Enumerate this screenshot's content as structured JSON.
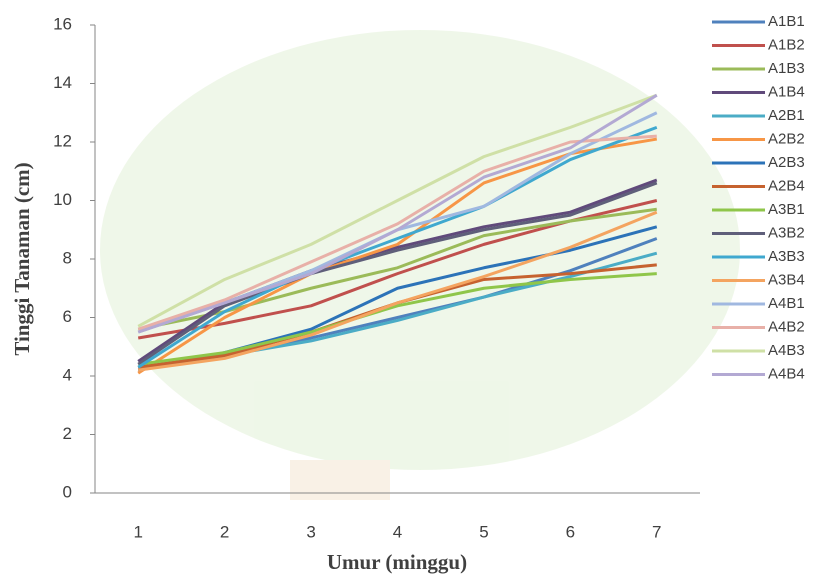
{
  "chart_data": {
    "type": "line",
    "x_label": "Umur (minggu)",
    "y_label": "Tinggi Tanaman (cm)",
    "categories": [
      "1",
      "2",
      "3",
      "4",
      "5",
      "6",
      "7"
    ],
    "ylim": [
      0,
      16
    ],
    "yticks": [
      0,
      2,
      4,
      6,
      8,
      10,
      12,
      14,
      16
    ],
    "series": [
      {
        "name": "A1B1",
        "color": "#4f81bd",
        "values": [
          4.3,
          4.7,
          5.3,
          6.0,
          6.7,
          7.6,
          8.7
        ]
      },
      {
        "name": "A1B2",
        "color": "#c0504d",
        "values": [
          5.3,
          5.8,
          6.4,
          7.5,
          8.5,
          9.3,
          10.0
        ]
      },
      {
        "name": "A1B3",
        "color": "#9bbb59",
        "values": [
          5.6,
          6.2,
          7.0,
          7.7,
          8.8,
          9.3,
          9.7
        ]
      },
      {
        "name": "A1B4",
        "color": "#604a7b",
        "values": [
          4.5,
          6.5,
          7.6,
          8.4,
          9.1,
          9.6,
          10.7
        ]
      },
      {
        "name": "A2B1",
        "color": "#4bacc6",
        "values": [
          4.2,
          4.7,
          5.2,
          5.9,
          6.7,
          7.4,
          8.2
        ]
      },
      {
        "name": "A2B2",
        "color": "#f79646",
        "values": [
          4.1,
          6.0,
          7.5,
          8.5,
          10.6,
          11.6,
          12.1
        ]
      },
      {
        "name": "A2B3",
        "color": "#2c73b8",
        "values": [
          4.2,
          4.8,
          5.6,
          7.0,
          7.7,
          8.3,
          9.1
        ]
      },
      {
        "name": "A2B4",
        "color": "#c6622f",
        "values": [
          4.3,
          4.7,
          5.5,
          6.5,
          7.3,
          7.5,
          7.8
        ]
      },
      {
        "name": "A3B1",
        "color": "#8fc64a",
        "values": [
          4.4,
          4.8,
          5.5,
          6.4,
          7.0,
          7.3,
          7.5
        ]
      },
      {
        "name": "A3B2",
        "color": "#5f5f7a",
        "values": [
          4.4,
          6.4,
          7.5,
          8.3,
          9.0,
          9.5,
          10.6
        ]
      },
      {
        "name": "A3B3",
        "color": "#3fa8cf",
        "values": [
          4.3,
          6.2,
          7.6,
          8.7,
          9.8,
          11.4,
          12.5
        ]
      },
      {
        "name": "A3B4",
        "color": "#f4a460",
        "values": [
          4.2,
          4.6,
          5.4,
          6.5,
          7.4,
          8.4,
          9.6
        ]
      },
      {
        "name": "A4B1",
        "color": "#a0b8e0",
        "values": [
          5.5,
          6.5,
          7.6,
          9.0,
          9.8,
          11.6,
          13.0
        ]
      },
      {
        "name": "A4B2",
        "color": "#e8b0a8",
        "values": [
          5.6,
          6.6,
          7.9,
          9.2,
          11.0,
          12.0,
          12.2
        ]
      },
      {
        "name": "A4B3",
        "color": "#cfe0a6",
        "values": [
          5.7,
          7.3,
          8.5,
          10.0,
          11.5,
          12.5,
          13.6
        ]
      },
      {
        "name": "A4B4",
        "color": "#b3a9d3",
        "values": [
          5.5,
          6.5,
          7.5,
          9.0,
          10.8,
          11.8,
          13.6
        ]
      }
    ]
  }
}
